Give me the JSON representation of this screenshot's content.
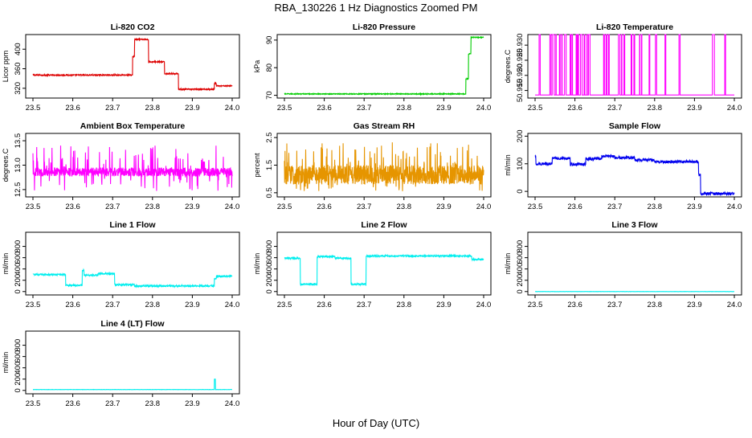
{
  "title": "RBA_130226  1 Hz Diagnostics Zoomed PM",
  "xlabel": "Hour of Day (UTC)",
  "chart_data": [
    {
      "type": "line",
      "title": "Li-820 CO2",
      "ylabel": "Licor ppm",
      "color": "#dd0000",
      "xlim": [
        23.5,
        24.0
      ],
      "xticks": [
        23.5,
        23.6,
        23.7,
        23.8,
        23.9,
        24.0
      ],
      "xtick_labels": [
        "23.5",
        "23.6",
        "23.7",
        "23.8",
        "23.9",
        "24.0"
      ],
      "ylim": [
        300,
        430
      ],
      "yticks": [
        320,
        360,
        400
      ],
      "ytick_labels": [
        "320",
        "360",
        "400"
      ],
      "noise": 1.2,
      "segments": [
        [
          23.5,
          23.75,
          347
        ],
        [
          23.75,
          23.755,
          385
        ],
        [
          23.755,
          23.79,
          420
        ],
        [
          23.79,
          23.83,
          374
        ],
        [
          23.83,
          23.865,
          350
        ],
        [
          23.865,
          23.955,
          318
        ],
        [
          23.955,
          23.96,
          330
        ],
        [
          23.96,
          24.0,
          325
        ]
      ]
    },
    {
      "type": "line",
      "title": "Li-820 Pressure",
      "ylabel": "kPa",
      "color": "#00cc00",
      "xlim": [
        23.5,
        24.0
      ],
      "xticks": [
        23.5,
        23.6,
        23.7,
        23.8,
        23.9,
        24.0
      ],
      "xtick_labels": [
        "23.5",
        "23.6",
        "23.7",
        "23.8",
        "23.9",
        "24.0"
      ],
      "ylim": [
        69,
        92
      ],
      "yticks": [
        70,
        80,
        90
      ],
      "ytick_labels": [
        "70",
        "80",
        "90"
      ],
      "noise": 0.15,
      "segments": [
        [
          23.5,
          23.955,
          70.5
        ],
        [
          23.955,
          23.962,
          76
        ],
        [
          23.962,
          23.968,
          85
        ],
        [
          23.968,
          24.0,
          91
        ]
      ]
    },
    {
      "type": "line",
      "title": "Li-820 Temperature",
      "ylabel": "degrees.C",
      "color": "#ff00ff",
      "xlim": [
        23.5,
        24.0
      ],
      "xticks": [
        23.5,
        23.6,
        23.7,
        23.8,
        23.9,
        24.0
      ],
      "xtick_labels": [
        "23.5",
        "23.6",
        "23.7",
        "23.8",
        "23.9",
        "24.0"
      ],
      "ylim": [
        50.9125,
        50.9335
      ],
      "yticks": [
        50.915,
        50.92,
        50.925,
        50.93
      ],
      "ytick_labels": [
        "50.915",
        "50.920",
        "50.925",
        "50.930"
      ],
      "low": 50.9135,
      "high": 50.9335,
      "spikes": [
        [
          23.51,
          23.513
        ],
        [
          23.537,
          23.54
        ],
        [
          23.543,
          23.548
        ],
        [
          23.552,
          23.553
        ],
        [
          23.561,
          23.563
        ],
        [
          23.567,
          23.568
        ],
        [
          23.574,
          23.578
        ],
        [
          23.588,
          23.59
        ],
        [
          23.593,
          23.594
        ],
        [
          23.603,
          23.605
        ],
        [
          23.607,
          23.609
        ],
        [
          23.614,
          23.618
        ],
        [
          23.623,
          23.625
        ],
        [
          23.63,
          23.631
        ],
        [
          23.634,
          23.638
        ],
        [
          23.672,
          23.674
        ],
        [
          23.678,
          23.68
        ],
        [
          23.684,
          23.686
        ],
        [
          23.709,
          23.713
        ],
        [
          23.717,
          23.718
        ],
        [
          23.723,
          23.725
        ],
        [
          23.741,
          23.743
        ],
        [
          23.748,
          23.75
        ],
        [
          23.762,
          23.763
        ],
        [
          23.767,
          23.768
        ],
        [
          23.786,
          23.788
        ],
        [
          23.802,
          23.805
        ],
        [
          23.826,
          23.828
        ],
        [
          23.861,
          23.864
        ],
        [
          23.945,
          23.95
        ],
        [
          23.976,
          23.978
        ]
      ]
    },
    {
      "type": "line",
      "title": "Ambient Box Temperature",
      "ylabel": "degrees.C",
      "color": "#ff00ff",
      "xlim": [
        23.5,
        24.0
      ],
      "xticks": [
        23.5,
        23.6,
        23.7,
        23.8,
        23.9,
        24.0
      ],
      "xtick_labels": [
        "23.5",
        "23.6",
        "23.7",
        "23.8",
        "23.9",
        "24.0"
      ],
      "ylim": [
        12.35,
        13.65
      ],
      "yticks": [
        12.5,
        13.0,
        13.5
      ],
      "ytick_labels": [
        "12.5",
        "13.0",
        "13.5"
      ],
      "base": 12.86,
      "noise": 0.09,
      "spike_up": 0.55,
      "spike_down": 0.4
    },
    {
      "type": "line",
      "title": "Gas Stream RH",
      "ylabel": "percent",
      "color": "#e69500",
      "xlim": [
        23.5,
        24.0
      ],
      "xticks": [
        23.5,
        23.6,
        23.7,
        23.8,
        23.9,
        24.0
      ],
      "xtick_labels": [
        "23.5",
        "23.6",
        "23.7",
        "23.8",
        "23.9",
        "24.0"
      ],
      "ylim": [
        0.35,
        2.65
      ],
      "yticks": [
        0.5,
        1.5,
        2.5
      ],
      "ytick_labels": [
        "0.5",
        "1.5",
        "2.5"
      ],
      "base": 1.15,
      "noise": 0.35,
      "spike_up": 1.2,
      "spike_down": 0.6
    },
    {
      "type": "line",
      "title": "Sample Flow",
      "ylabel": "ml/min",
      "color": "#0000ee",
      "xlim": [
        23.5,
        24.0
      ],
      "xticks": [
        23.5,
        23.6,
        23.7,
        23.8,
        23.9,
        24.0
      ],
      "xtick_labels": [
        "23.5",
        "23.6",
        "23.7",
        "23.8",
        "23.9",
        "24.0"
      ],
      "ylim": [
        -20,
        210
      ],
      "yticks": [
        0,
        100,
        200
      ],
      "ytick_labels": [
        "0",
        "100",
        "200"
      ],
      "noise": 5,
      "segments": [
        [
          23.5,
          23.502,
          125
        ],
        [
          23.502,
          23.543,
          100
        ],
        [
          23.543,
          23.588,
          120
        ],
        [
          23.588,
          23.627,
          98
        ],
        [
          23.627,
          23.667,
          118
        ],
        [
          23.667,
          23.7,
          128
        ],
        [
          23.7,
          23.75,
          122
        ],
        [
          23.75,
          23.8,
          113
        ],
        [
          23.8,
          23.85,
          107
        ],
        [
          23.85,
          23.91,
          108
        ],
        [
          23.91,
          23.915,
          60
        ],
        [
          23.915,
          24.0,
          -8
        ]
      ]
    },
    {
      "type": "line",
      "title": "Line 1 Flow",
      "ylabel": "ml/min",
      "color": "#00eeee",
      "xlim": [
        23.5,
        24.0
      ],
      "xticks": [
        23.5,
        23.6,
        23.7,
        23.8,
        23.9,
        24.0
      ],
      "xtick_labels": [
        "23.5",
        "23.6",
        "23.7",
        "23.8",
        "23.9",
        "24.0"
      ],
      "ylim": [
        -60,
        1050
      ],
      "yticks": [
        0,
        200,
        400,
        600,
        800
      ],
      "ytick_labels": [
        "0",
        "200",
        "400",
        "600",
        "800"
      ],
      "noise": 14,
      "segments": [
        [
          23.5,
          23.582,
          300
        ],
        [
          23.582,
          23.624,
          110
        ],
        [
          23.624,
          23.628,
          380
        ],
        [
          23.628,
          23.664,
          290
        ],
        [
          23.664,
          23.705,
          320
        ],
        [
          23.705,
          23.755,
          120
        ],
        [
          23.755,
          23.955,
          100
        ],
        [
          23.955,
          23.96,
          220
        ],
        [
          23.96,
          24.0,
          270
        ]
      ]
    },
    {
      "type": "line",
      "title": "Line 2 Flow",
      "ylabel": "ml/min",
      "color": "#00eeee",
      "xlim": [
        23.5,
        24.0
      ],
      "xticks": [
        23.5,
        23.6,
        23.7,
        23.8,
        23.9,
        24.0
      ],
      "xtick_labels": [
        "23.5",
        "23.6",
        "23.7",
        "23.8",
        "23.9",
        "24.0"
      ],
      "ylim": [
        -60,
        1050
      ],
      "yticks": [
        0,
        200,
        400,
        600,
        800
      ],
      "ytick_labels": [
        "0",
        "200",
        "400",
        "600",
        "800"
      ],
      "noise": 14,
      "segments": [
        [
          23.5,
          23.54,
          590
        ],
        [
          23.54,
          23.582,
          130
        ],
        [
          23.582,
          23.627,
          620
        ],
        [
          23.627,
          23.667,
          590
        ],
        [
          23.667,
          23.705,
          130
        ],
        [
          23.705,
          23.97,
          630
        ],
        [
          23.97,
          24.0,
          570
        ]
      ]
    },
    {
      "type": "line",
      "title": "Line 3 Flow",
      "ylabel": "ml/min",
      "color": "#00eeee",
      "xlim": [
        23.5,
        24.0
      ],
      "xticks": [
        23.5,
        23.6,
        23.7,
        23.8,
        23.9,
        24.0
      ],
      "xtick_labels": [
        "23.5",
        "23.6",
        "23.7",
        "23.8",
        "23.9",
        "24.0"
      ],
      "ylim": [
        -60,
        1050
      ],
      "yticks": [
        0,
        200,
        400,
        600,
        800
      ],
      "ytick_labels": [
        "0",
        "200",
        "400",
        "600",
        "800"
      ],
      "noise": 1.5,
      "segments": [
        [
          23.5,
          24.0,
          0
        ]
      ]
    },
    {
      "type": "line",
      "title": "Line 4 (LT) Flow",
      "ylabel": "ml/min",
      "color": "#00eeee",
      "xlim": [
        23.5,
        24.0
      ],
      "xticks": [
        23.5,
        23.6,
        23.7,
        23.8,
        23.9,
        24.0
      ],
      "xtick_labels": [
        "23.5",
        "23.6",
        "23.7",
        "23.8",
        "23.9",
        "24.0"
      ],
      "ylim": [
        -60,
        1050
      ],
      "yticks": [
        0,
        200,
        400,
        600,
        800
      ],
      "ytick_labels": [
        "0",
        "200",
        "400",
        "600",
        "800"
      ],
      "noise": 2,
      "segments": [
        [
          23.5,
          23.955,
          15
        ],
        [
          23.955,
          23.958,
          200
        ],
        [
          23.958,
          24.0,
          15
        ]
      ]
    }
  ]
}
